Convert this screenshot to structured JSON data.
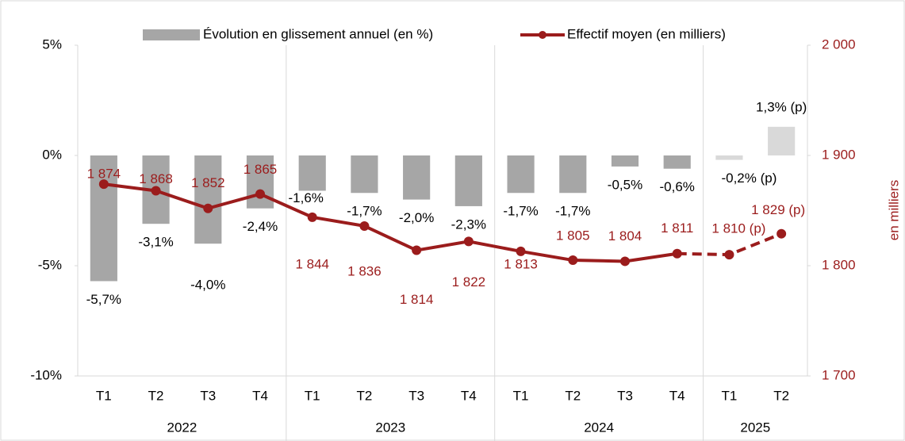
{
  "chart_data": {
    "type": "bar_line",
    "categories": [
      "T1",
      "T2",
      "T3",
      "T4",
      "T1",
      "T2",
      "T3",
      "T4",
      "T1",
      "T2",
      "T3",
      "T4",
      "T1",
      "T2"
    ],
    "groups": [
      "2022",
      "2023",
      "2024",
      "2025"
    ],
    "group_sizes": [
      4,
      4,
      4,
      2
    ],
    "series": [
      {
        "name": "Évolution en glissement annuel (en %)",
        "type": "bar",
        "colors": [
          "#a6a6a6",
          "#a6a6a6",
          "#a6a6a6",
          "#a6a6a6",
          "#a6a6a6",
          "#a6a6a6",
          "#a6a6a6",
          "#a6a6a6",
          "#a6a6a6",
          "#a6a6a6",
          "#a6a6a6",
          "#a6a6a6",
          "#d9d9d9",
          "#d9d9d9"
        ],
        "color": "#a6a6a6",
        "values": [
          -5.7,
          -3.1,
          -4.0,
          -2.4,
          -1.6,
          -1.7,
          -2.0,
          -2.3,
          -1.7,
          -1.7,
          -0.5,
          -0.6,
          -0.2,
          1.3
        ],
        "value_labels": [
          "-5,7%",
          "-3,1%",
          "-4,0%",
          "-2,4%",
          "-1,6%",
          "-1,7%",
          "-2,0%",
          "-2,3%",
          "-1,7%",
          "-1,7%",
          "-0,5%",
          "-0,6%",
          "-0,2% (p)",
          "1,3% (p)"
        ]
      },
      {
        "name": "Effectif moyen (en milliers)",
        "type": "line",
        "axis": "y2",
        "color": "#9b1c1c",
        "dashed_from": 11,
        "values": [
          1874,
          1868,
          1852,
          1865,
          1844,
          1836,
          1814,
          1822,
          1813,
          1805,
          1804,
          1811,
          1810,
          1829
        ],
        "value_labels": [
          "1 874",
          "1 868",
          "1 852",
          "1 865",
          "1 844",
          "1 836",
          "1 814",
          "1 822",
          "1 813",
          "1 805",
          "1 804",
          "1 811",
          "1 810 (p)",
          "1 829 (p)"
        ]
      }
    ],
    "ylim": [
      -10,
      5
    ],
    "yticks": [
      {
        "value": -10,
        "label": "-10%"
      },
      {
        "value": -5,
        "label": "-5%"
      },
      {
        "value": 0,
        "label": "0%"
      },
      {
        "value": 5,
        "label": "5%"
      }
    ],
    "y2lim": [
      1700,
      2000
    ],
    "y2ticks": [
      {
        "value": 1700,
        "label": "1 700"
      },
      {
        "value": 1800,
        "label": "1 800"
      },
      {
        "value": 1900,
        "label": "1 900"
      },
      {
        "value": 2000,
        "label": "2 000"
      }
    ],
    "y2label": "en milliers"
  }
}
